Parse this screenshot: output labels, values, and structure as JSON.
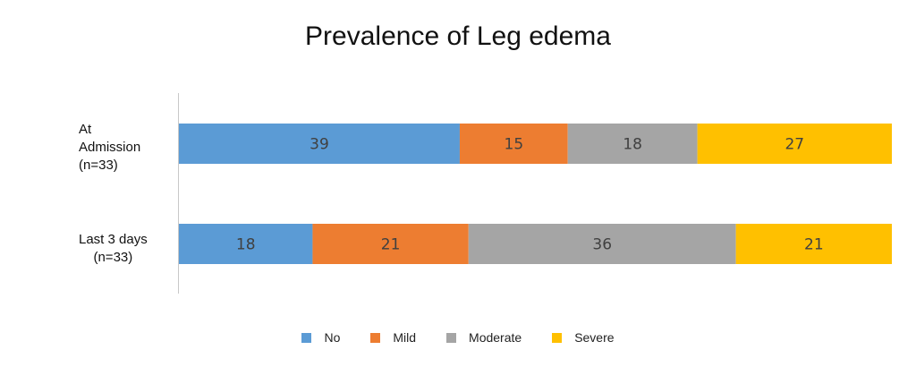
{
  "chart_data": {
    "type": "bar",
    "orientation": "horizontal",
    "stacked": true,
    "title": "Prevalence of Leg edema",
    "categories": [
      {
        "lines": [
          "At",
          "Admission",
          "(n=33)"
        ]
      },
      {
        "lines": [
          "Last 3 days",
          "(n=33)"
        ]
      }
    ],
    "series": [
      {
        "name": "No",
        "color": "#5B9BD5",
        "values": [
          39,
          18
        ]
      },
      {
        "name": "Mild",
        "color": "#ED7D31",
        "values": [
          15,
          21
        ]
      },
      {
        "name": "Moderate",
        "color": "#A5A5A5",
        "values": [
          18,
          36
        ]
      },
      {
        "name": "Severe",
        "color": "#FFC000",
        "values": [
          27,
          21
        ]
      }
    ],
    "xlim": [
      0,
      100
    ],
    "grid": false,
    "legend_position": "bottom"
  }
}
